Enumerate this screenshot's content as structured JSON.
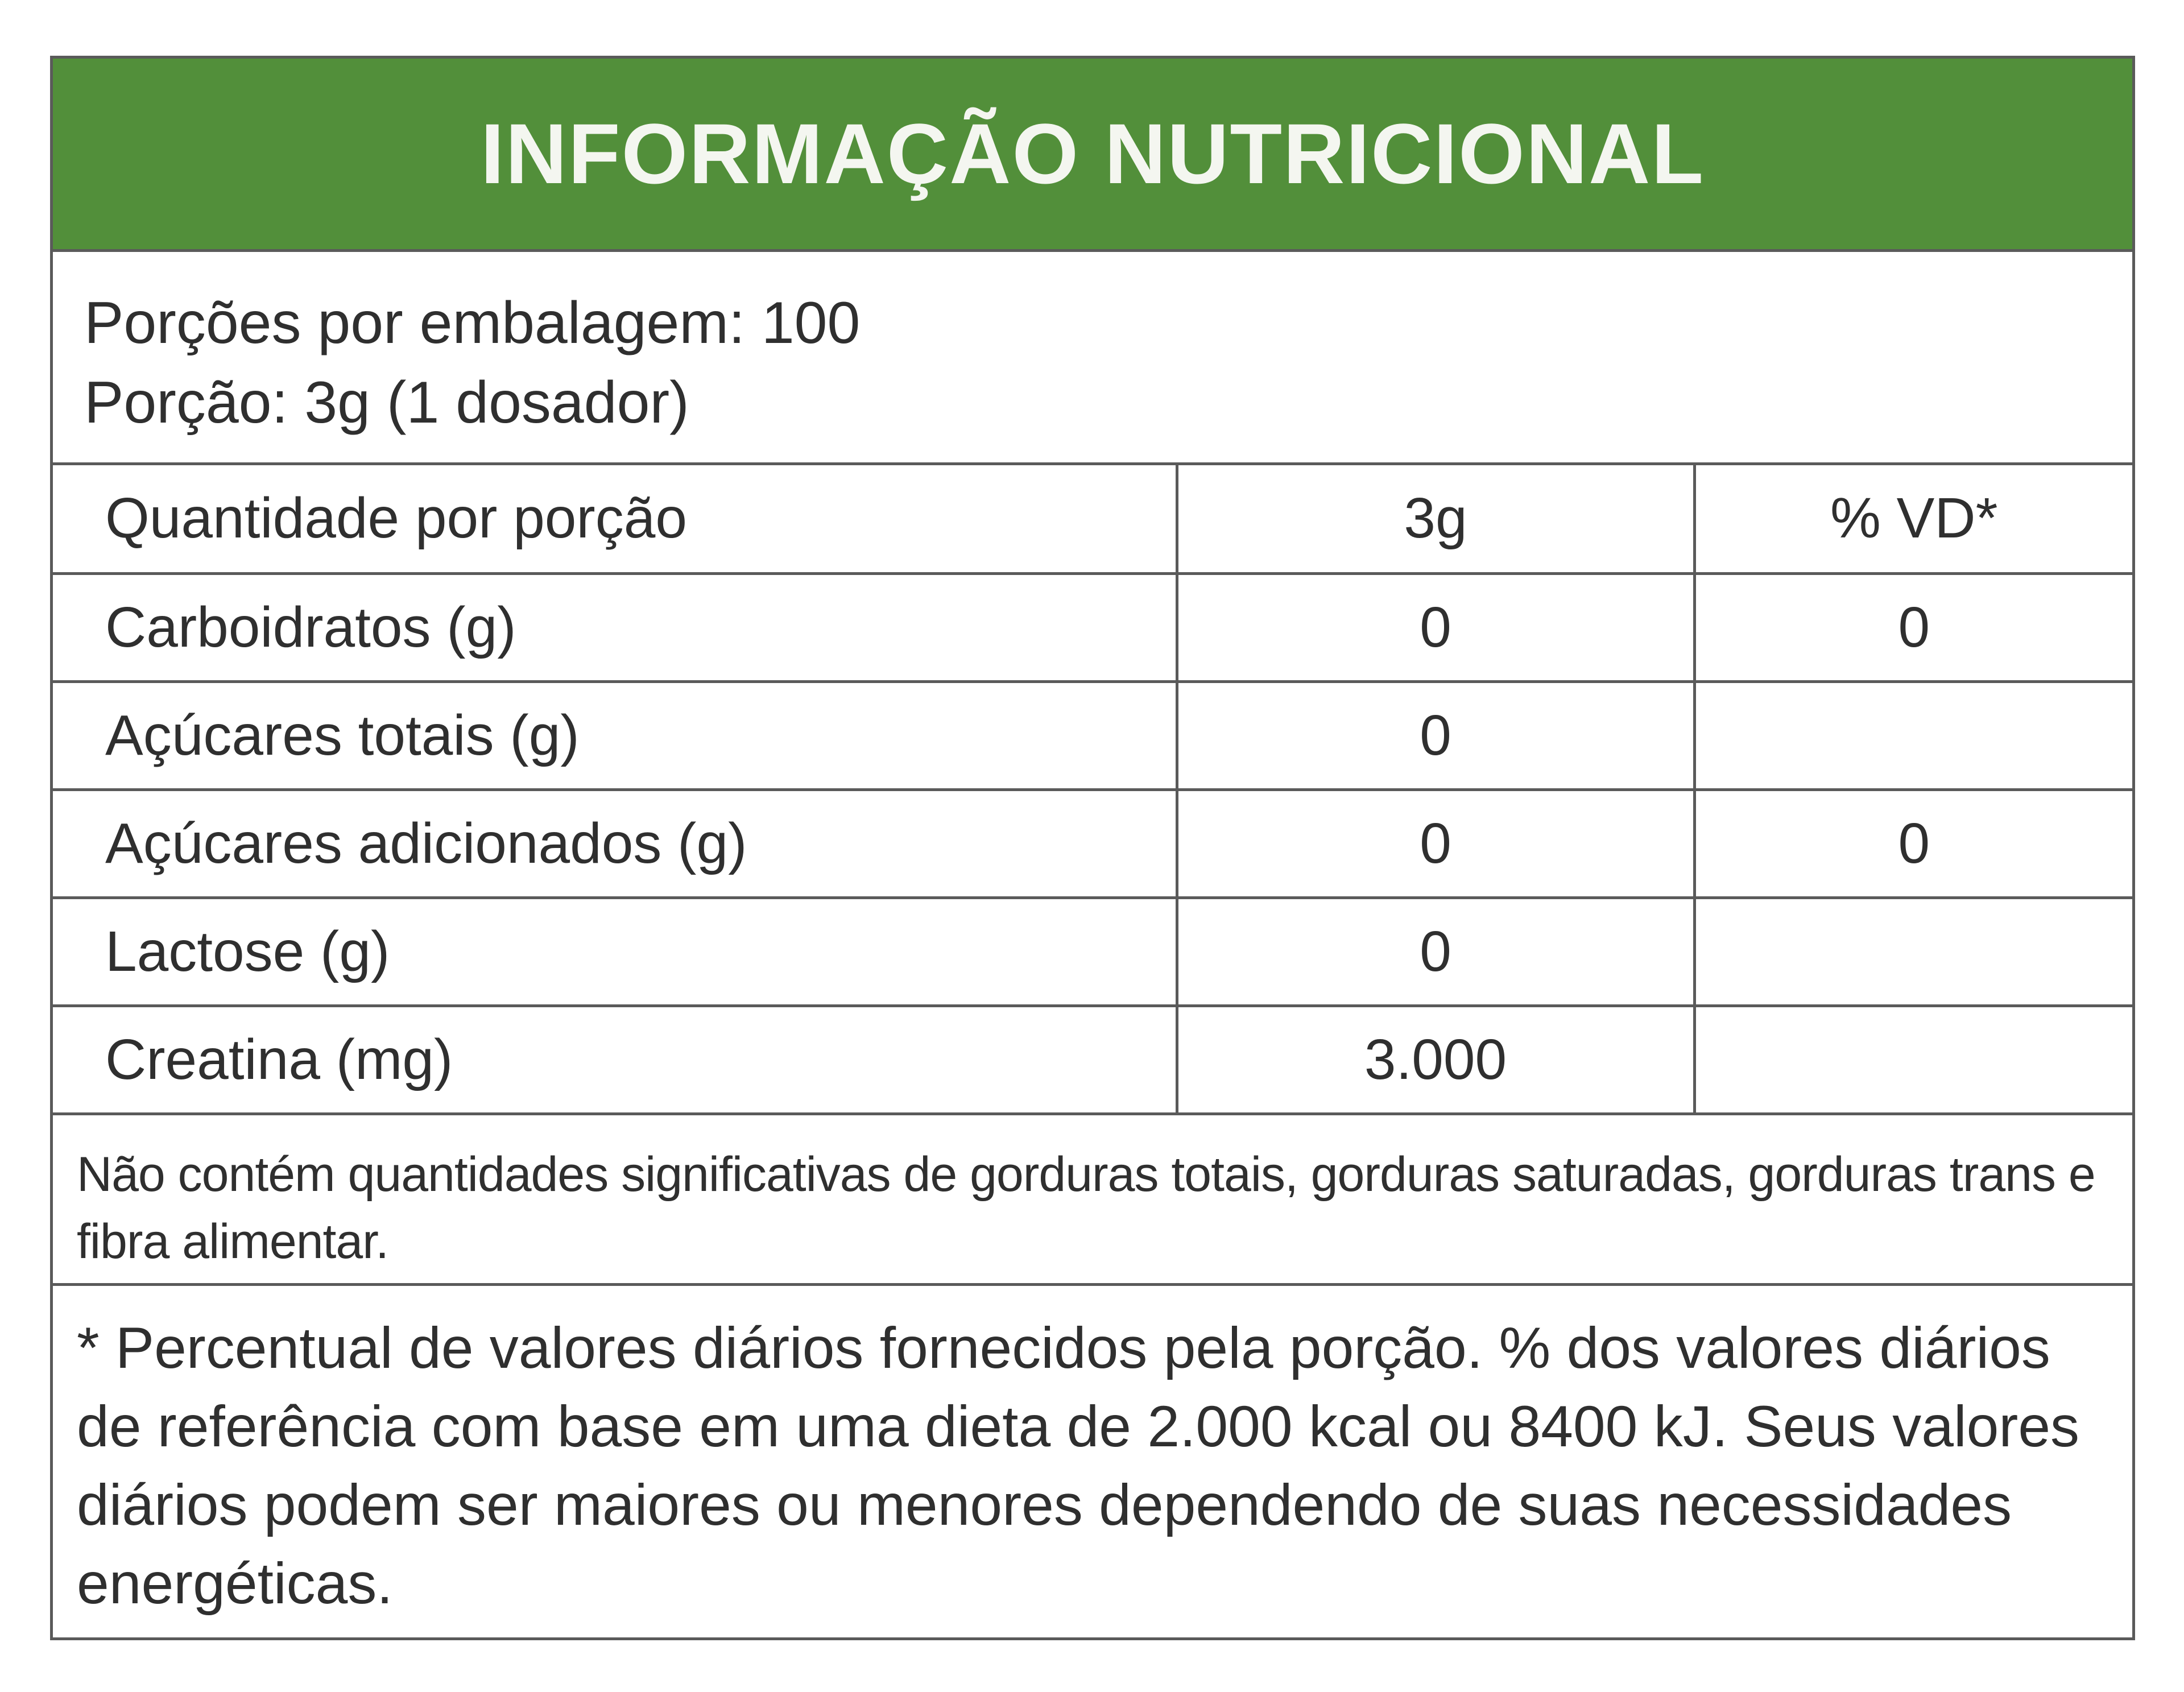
{
  "header": {
    "title": "INFORMAÇÃO NUTRICIONAL"
  },
  "portions": {
    "per_package": "Porções por embalagem: 100",
    "portion": "Porção: 3g (1 dosador)"
  },
  "table": {
    "header": {
      "label": "Quantidade por porção",
      "amount": "3g",
      "vd": "% VD*"
    },
    "rows": [
      {
        "label": "Carboidratos (g)",
        "amount": "0",
        "vd": "0"
      },
      {
        "label": "Açúcares totais (g)",
        "amount": "0",
        "vd": ""
      },
      {
        "label": "Açúcares adicionados (g)",
        "amount": "0",
        "vd": "0"
      },
      {
        "label": "Lactose (g)",
        "amount": "0",
        "vd": ""
      },
      {
        "label": "Creatina (mg)",
        "amount": "3.000",
        "vd": ""
      }
    ]
  },
  "note": "Não contém quantidades significativas de gorduras totais, gorduras saturadas, gorduras trans e fibra alimentar.",
  "footnote": "* Percentual de valores diários fornecidos pela porção. % dos valores diários de referência com base em uma dieta de 2.000 kcal ou 8400 kJ. Seus valores diários podem ser maiores ou menores dependendo de suas necessidades energéticas.",
  "colors": {
    "header_green": "#528f3a",
    "header_text": "#f4f6f0",
    "border": "#5a5a5a",
    "text": "#2f2f2f"
  }
}
